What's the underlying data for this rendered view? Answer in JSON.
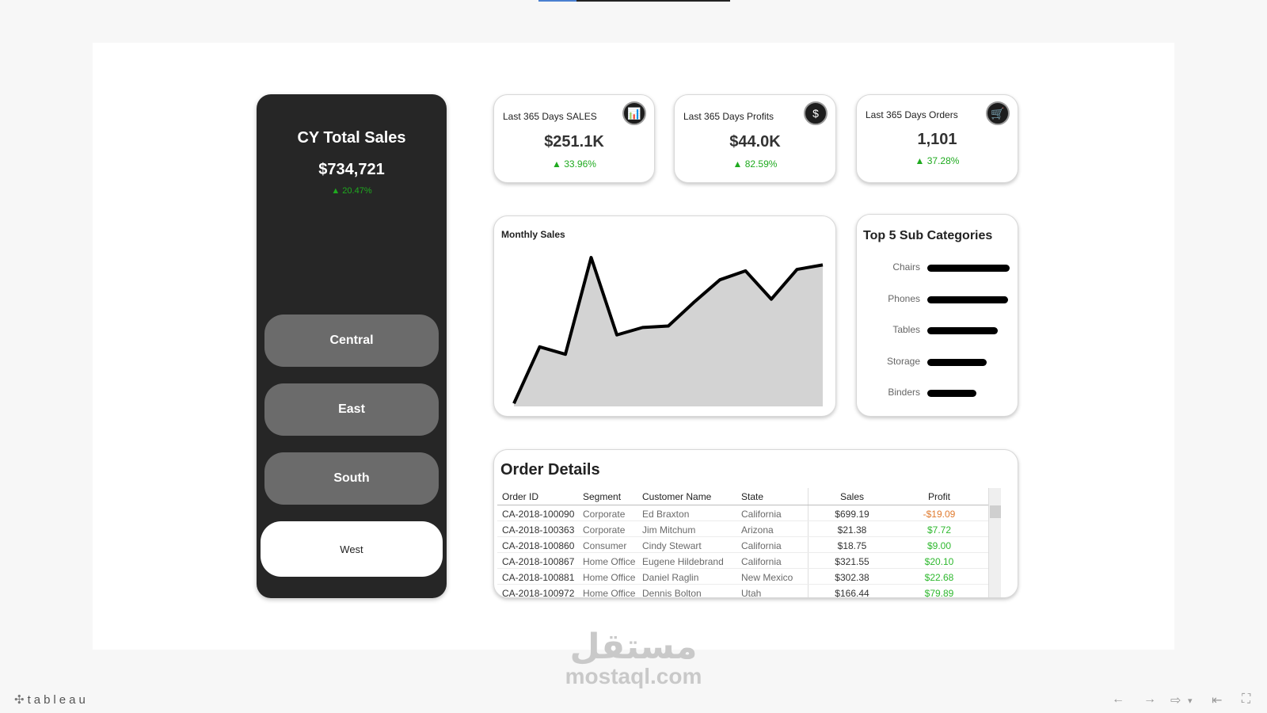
{
  "left_panel": {
    "title": "CY Total Sales",
    "value": "$734,721",
    "delta": "▲ 20.47%",
    "regions": [
      "Central",
      "East",
      "South",
      "West"
    ],
    "selected_region": "West"
  },
  "kpis": [
    {
      "title": "Last 365 Days SALES",
      "value": "$251.1K",
      "delta": "▲ 33.96%",
      "icon": "sales-chart-icon",
      "glyph": "📊"
    },
    {
      "title": "Last 365 Days Profits",
      "value": "$44.0K",
      "delta": "▲ 82.59%",
      "icon": "money-bag-icon",
      "glyph": "$"
    },
    {
      "title": "Last 365 Days Orders",
      "value": "1,101",
      "delta": "▲ 37.28%",
      "icon": "shopping-cart-icon",
      "glyph": "🛒"
    }
  ],
  "monthly_sales": {
    "title": "Monthly Sales"
  },
  "top5": {
    "title": "Top 5 Sub Categories"
  },
  "orders": {
    "title": "Order Details",
    "columns": [
      "Order ID",
      "Segment",
      "Customer Name",
      "State",
      "Sales",
      "Profit"
    ],
    "rows": [
      [
        "CA-2018-100090",
        "Corporate",
        "Ed Braxton",
        "California",
        "$699.19",
        "-$19.09"
      ],
      [
        "CA-2018-100363",
        "Corporate",
        "Jim Mitchum",
        "Arizona",
        "$21.38",
        "$7.72"
      ],
      [
        "CA-2018-100860",
        "Consumer",
        "Cindy Stewart",
        "California",
        "$18.75",
        "$9.00"
      ],
      [
        "CA-2018-100867",
        "Home Office",
        "Eugene Hildebrand",
        "California",
        "$321.55",
        "$20.10"
      ],
      [
        "CA-2018-100881",
        "Home Office",
        "Daniel Raglin",
        "New Mexico",
        "$302.38",
        "$22.68"
      ],
      [
        "CA-2018-100972",
        "Home Office",
        "Dennis Bolton",
        "Utah",
        "$166.44",
        "$79.89"
      ]
    ],
    "profit_colors": {
      "negative": "#e07a2e",
      "positive": "#2eb82e"
    }
  },
  "watermark": {
    "logo": "مستقل",
    "text": "mostaql.com"
  },
  "footer": {
    "brand": "tableau",
    "brand_mark": "✣",
    "nav": [
      "←",
      "→",
      "⇨",
      "▾",
      "⇤",
      "⛶"
    ]
  },
  "colors": {
    "panel": "#262626",
    "region_button": "#6b6b6b",
    "positive": "#1faa1f"
  },
  "chart_data": [
    {
      "type": "area",
      "title": "Monthly Sales",
      "x": [
        1,
        2,
        3,
        4,
        5,
        6,
        7,
        8,
        9,
        10,
        11,
        12,
        13
      ],
      "values": [
        2,
        40,
        35,
        100,
        48,
        53,
        54,
        70,
        85,
        91,
        72,
        92,
        95
      ],
      "ylim": [
        0,
        100
      ],
      "grid": false
    },
    {
      "type": "bar",
      "orientation": "horizontal",
      "title": "Top 5 Sub Categories",
      "categories": [
        "Chairs",
        "Phones",
        "Tables",
        "Storage",
        "Binders"
      ],
      "values": [
        100,
        98,
        86,
        72,
        60
      ]
    }
  ]
}
